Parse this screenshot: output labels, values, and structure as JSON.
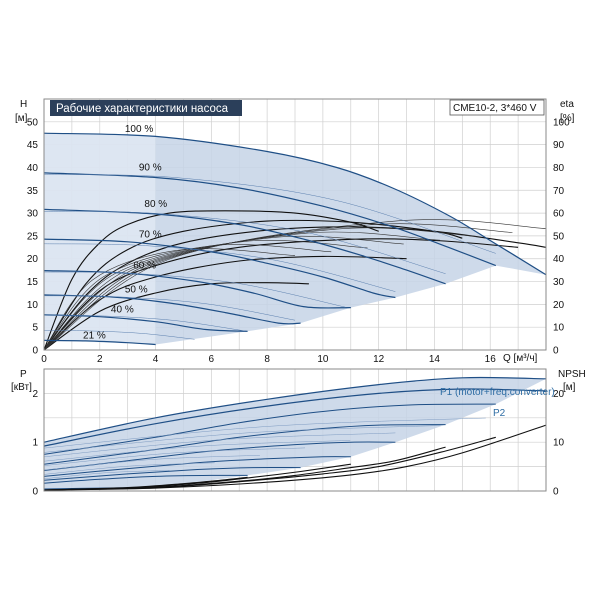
{
  "chart_data": [
    {
      "type": "line",
      "title": "Рабочие характеристики насоса",
      "model_label": "CME10-2, 3*460 V",
      "x_axis": {
        "label": "Q [м³/ч]",
        "range": [
          0,
          18
        ],
        "ticks": [
          "0",
          "2",
          "4",
          "6",
          "8",
          "10",
          "12",
          "14",
          "16"
        ]
      },
      "y_axis_left": {
        "label": "H",
        "unit": "[м]",
        "range": [
          0,
          55
        ],
        "ticks": [
          "0",
          "5",
          "10",
          "15",
          "20",
          "25",
          "30",
          "35",
          "40",
          "45",
          "50"
        ]
      },
      "y_axis_right": {
        "label": "eta",
        "unit": "[%]",
        "range": [
          0,
          110
        ],
        "ticks": [
          "0",
          "10",
          "20",
          "30",
          "40",
          "50",
          "60",
          "70",
          "80",
          "90",
          "100"
        ]
      },
      "speed_curves": [
        {
          "label": "100 %",
          "points": [
            [
              0,
              47.5
            ],
            [
              4,
              46.8
            ],
            [
              8,
              43.5
            ],
            [
              10.5,
              40
            ],
            [
              12.5,
              35.5
            ],
            [
              14.5,
              29.5
            ],
            [
              16,
              24
            ],
            [
              18,
              16.5
            ]
          ]
        },
        {
          "label": "90 %",
          "points": [
            [
              0,
              38.8
            ],
            [
              4,
              37.8
            ],
            [
              7,
              35.5
            ],
            [
              10,
              31.5
            ],
            [
              12.5,
              27
            ],
            [
              14.5,
              22.5
            ],
            [
              16.2,
              18.5
            ]
          ]
        },
        {
          "label": "80 %",
          "points": [
            [
              0,
              30.8
            ],
            [
              4,
              29.8
            ],
            [
              7,
              27.5
            ],
            [
              9.5,
              24
            ],
            [
              11.5,
              20.5
            ],
            [
              13,
              17.5
            ],
            [
              14.4,
              14.5
            ]
          ]
        },
        {
          "label": "70 %",
          "points": [
            [
              0,
              24.3
            ],
            [
              3,
              23.7
            ],
            [
              6,
              21.5
            ],
            [
              8,
              19
            ],
            [
              10,
              16
            ],
            [
              11.8,
              12.5
            ],
            [
              12.6,
              11.5
            ]
          ]
        },
        {
          "label": "60 %",
          "points": [
            [
              0,
              17.4
            ],
            [
              3,
              16.8
            ],
            [
              5.5,
              15
            ],
            [
              7.5,
              12.5
            ],
            [
              9.3,
              9.5
            ],
            [
              11,
              9.3
            ]
          ]
        },
        {
          "label": "50 %",
          "points": [
            [
              0,
              12.1
            ],
            [
              2.5,
              11.6
            ],
            [
              4.5,
              10.3
            ],
            [
              6.5,
              8.2
            ],
            [
              8.4,
              5.9
            ],
            [
              9.2,
              5.9
            ]
          ]
        },
        {
          "label": "40 %",
          "points": [
            [
              0,
              7.7
            ],
            [
              2,
              7.3
            ],
            [
              4,
              6.2
            ],
            [
              5.8,
              4.5
            ],
            [
              7.3,
              4.1
            ]
          ]
        },
        {
          "label": "21 %",
          "points": [
            [
              0,
              2.1
            ],
            [
              1.5,
              2.0
            ],
            [
              3,
              1.6
            ],
            [
              4,
              1.2
            ]
          ]
        }
      ],
      "speed_label_positions": [
        [
          2.9,
          47.8
        ],
        [
          3.4,
          39.3
        ],
        [
          3.6,
          31.3
        ],
        [
          3.4,
          24.6
        ],
        [
          3.2,
          17.9
        ],
        [
          2.9,
          12.6
        ],
        [
          2.4,
          8.2
        ],
        [
          1.4,
          2.5
        ]
      ],
      "efficiency_curves": [
        {
          "points": [
            [
              0,
              0
            ],
            [
              1,
              31
            ],
            [
              2,
              47
            ],
            [
              3,
              55
            ],
            [
              4.5,
              60
            ],
            [
              6.5,
              61
            ],
            [
              9,
              60
            ],
            [
              11,
              56
            ],
            [
              12,
              52
            ]
          ]
        },
        {
          "points": [
            [
              0,
              0
            ],
            [
              1.5,
              29
            ],
            [
              3,
              44
            ],
            [
              5,
              52
            ],
            [
              8,
              56.5
            ],
            [
              11,
              56
            ],
            [
              14,
              52
            ],
            [
              15,
              49
            ]
          ]
        },
        {
          "points": [
            [
              0,
              0
            ],
            [
              1.5,
              24
            ],
            [
              3,
              38
            ],
            [
              5,
              47
            ],
            [
              8,
              52.5
            ],
            [
              11,
              54
            ],
            [
              14,
              52
            ],
            [
              17,
              47
            ],
            [
              18,
              45
            ]
          ]
        },
        {
          "points": [
            [
              0,
              0
            ],
            [
              2,
              26
            ],
            [
              4,
              37
            ],
            [
              7,
              45
            ],
            [
              11,
              48.5
            ],
            [
              14,
              48
            ],
            [
              17,
              45
            ]
          ]
        },
        {
          "points": [
            [
              0,
              0
            ],
            [
              2,
              22
            ],
            [
              4,
              32
            ],
            [
              7,
              39
            ],
            [
              10,
              41
            ],
            [
              13,
              40
            ]
          ]
        },
        {
          "points": [
            [
              0,
              0
            ],
            [
              2,
              17
            ],
            [
              4,
              25
            ],
            [
              6,
              29
            ],
            [
              8,
              29.5
            ],
            [
              9.5,
              29
            ]
          ]
        }
      ],
      "series_right_axis": "eta [%]"
    },
    {
      "type": "line",
      "x_axis": {
        "range": [
          0,
          18
        ]
      },
      "y_axis_left": {
        "label": "P",
        "unit": "[кВт]",
        "range": [
          0,
          2.5
        ],
        "ticks": [
          "0",
          "1",
          "2"
        ]
      },
      "y_axis_right": {
        "label": "NPSH",
        "unit": "[м]",
        "range": [
          0,
          25
        ],
        "ticks": [
          "0",
          "10",
          "20"
        ]
      },
      "legend_labels": [
        "P1 (motor+freq.converter)",
        "P2"
      ],
      "power_curves": [
        {
          "points": [
            [
              0,
              1.0
            ],
            [
              4,
              1.5
            ],
            [
              8,
              1.88
            ],
            [
              12,
              2.18
            ],
            [
              15,
              2.32
            ],
            [
              18,
              2.3
            ]
          ]
        },
        {
          "points": [
            [
              0,
              0.92
            ],
            [
              4,
              1.38
            ],
            [
              8,
              1.74
            ],
            [
              12,
              2.0
            ],
            [
              15,
              2.09
            ],
            [
              18,
              2.05
            ]
          ]
        },
        {
          "points": [
            [
              0,
              0.75
            ],
            [
              4,
              1.1
            ],
            [
              7,
              1.4
            ],
            [
              10,
              1.63
            ],
            [
              13,
              1.76
            ],
            [
              16.2,
              1.78
            ]
          ]
        },
        {
          "points": [
            [
              0,
              0.55
            ],
            [
              4,
              0.85
            ],
            [
              7,
              1.1
            ],
            [
              10,
              1.28
            ],
            [
              12,
              1.35
            ],
            [
              14.4,
              1.36
            ]
          ]
        },
        {
          "points": [
            [
              0,
              0.42
            ],
            [
              3,
              0.62
            ],
            [
              6,
              0.82
            ],
            [
              9,
              0.95
            ],
            [
              11,
              1.0
            ],
            [
              12.6,
              1.0
            ]
          ]
        },
        {
          "points": [
            [
              0,
              0.3
            ],
            [
              3,
              0.46
            ],
            [
              6,
              0.6
            ],
            [
              8,
              0.66
            ],
            [
              10,
              0.7
            ],
            [
              11,
              0.7
            ]
          ]
        },
        {
          "points": [
            [
              0,
              0.22
            ],
            [
              3,
              0.35
            ],
            [
              5.5,
              0.44
            ],
            [
              7.5,
              0.48
            ],
            [
              9.2,
              0.48
            ]
          ]
        },
        {
          "points": [
            [
              0,
              0.16
            ],
            [
              2,
              0.24
            ],
            [
              4,
              0.3
            ],
            [
              6,
              0.32
            ],
            [
              7.3,
              0.32
            ]
          ]
        },
        {
          "points": [
            [
              0,
              0.04
            ],
            [
              2,
              0.06
            ],
            [
              4,
              0.07
            ]
          ]
        }
      ],
      "npsh_curves": [
        {
          "points": [
            [
              0,
              0.2
            ],
            [
              4,
              0.6
            ],
            [
              8,
              1.8
            ],
            [
              11,
              3.3
            ],
            [
              13,
              5.0
            ],
            [
              15,
              7.8
            ],
            [
              18,
              13.5
            ]
          ]
        },
        {
          "points": [
            [
              0,
              0.2
            ],
            [
              4,
              0.7
            ],
            [
              7,
              1.9
            ],
            [
              10,
              3.5
            ],
            [
              12,
              5.0
            ],
            [
              14.4,
              8.2
            ],
            [
              16.2,
              11
            ]
          ]
        },
        {
          "points": [
            [
              0,
              0.2
            ],
            [
              4,
              0.8
            ],
            [
              7,
              2.0
            ],
            [
              9,
              3.2
            ],
            [
              11,
              4.8
            ],
            [
              12.6,
              6.2
            ],
            [
              14.4,
              9
            ]
          ]
        },
        {
          "points": [
            [
              0,
              0.2
            ],
            [
              3,
              0.6
            ],
            [
              5.5,
              1.6
            ],
            [
              7.5,
              2.8
            ],
            [
              9.2,
              4
            ],
            [
              11,
              5.5
            ]
          ]
        },
        {
          "points": [
            [
              0,
              0.2
            ],
            [
              3,
              0.7
            ],
            [
              5,
              1.5
            ],
            [
              6.5,
              2.3
            ],
            [
              7.3,
              2.8
            ]
          ]
        }
      ]
    }
  ]
}
